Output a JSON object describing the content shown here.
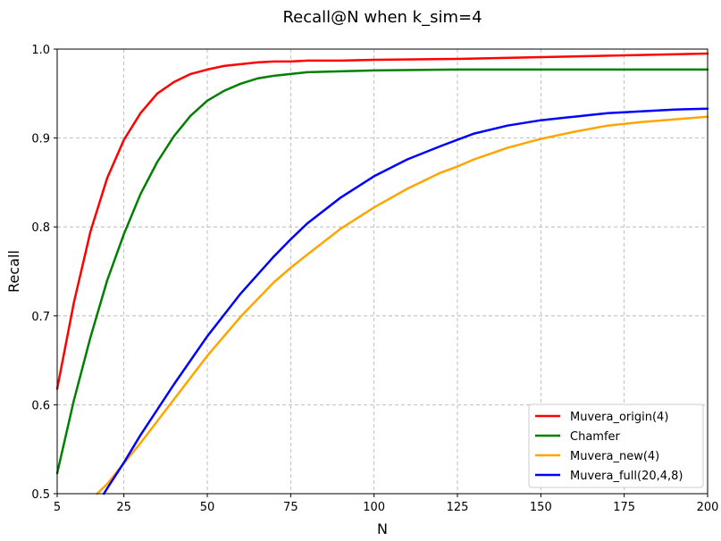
{
  "chart_data": {
    "type": "line",
    "title": "Recall@N when k_sim=4",
    "xlabel": "N",
    "ylabel": "Recall",
    "xlim": [
      5,
      200
    ],
    "ylim": [
      0.5,
      1.0
    ],
    "xticks": [
      5,
      25,
      50,
      75,
      100,
      125,
      150,
      175,
      200
    ],
    "yticks": [
      0.5,
      0.6,
      0.7,
      0.8,
      0.9,
      1.0
    ],
    "grid": true,
    "legend_position": "lower-right",
    "series": [
      {
        "name": "Muvera_origin(4)",
        "color": "#ff0000",
        "x": [
          5,
          10,
          15,
          20,
          25,
          30,
          35,
          40,
          45,
          50,
          55,
          60,
          65,
          70,
          75,
          80,
          90,
          100,
          125,
          150,
          175,
          200
        ],
        "y": [
          0.618,
          0.715,
          0.795,
          0.855,
          0.898,
          0.928,
          0.95,
          0.963,
          0.972,
          0.977,
          0.981,
          0.983,
          0.985,
          0.986,
          0.986,
          0.987,
          0.987,
          0.988,
          0.989,
          0.991,
          0.993,
          0.995
        ]
      },
      {
        "name": "Chamfer",
        "color": "#008000",
        "x": [
          5,
          10,
          15,
          20,
          25,
          30,
          35,
          40,
          45,
          50,
          55,
          60,
          65,
          70,
          75,
          80,
          90,
          100,
          125,
          150,
          175,
          200
        ],
        "y": [
          0.523,
          0.605,
          0.676,
          0.74,
          0.792,
          0.837,
          0.873,
          0.902,
          0.925,
          0.942,
          0.953,
          0.961,
          0.967,
          0.97,
          0.972,
          0.974,
          0.975,
          0.976,
          0.977,
          0.977,
          0.977,
          0.977
        ]
      },
      {
        "name": "Muvera_new(4)",
        "color": "#ffa500",
        "x": [
          17,
          20,
          25,
          30,
          40,
          50,
          60,
          70,
          75,
          80,
          90,
          100,
          110,
          120,
          125,
          130,
          140,
          150,
          160,
          170,
          175,
          180,
          190,
          200
        ],
        "y": [
          0.5,
          0.511,
          0.534,
          0.557,
          0.606,
          0.655,
          0.699,
          0.738,
          0.754,
          0.769,
          0.798,
          0.822,
          0.843,
          0.861,
          0.868,
          0.876,
          0.889,
          0.899,
          0.907,
          0.914,
          0.916,
          0.918,
          0.921,
          0.924
        ]
      },
      {
        "name": "Muvera_full(20,4,8)",
        "color": "#0000ff",
        "x": [
          19,
          20,
          25,
          30,
          40,
          50,
          60,
          70,
          75,
          80,
          90,
          100,
          110,
          120,
          125,
          130,
          140,
          150,
          160,
          170,
          175,
          180,
          190,
          200
        ],
        "y": [
          0.5,
          0.506,
          0.535,
          0.566,
          0.623,
          0.677,
          0.725,
          0.767,
          0.786,
          0.804,
          0.833,
          0.857,
          0.876,
          0.891,
          0.898,
          0.905,
          0.914,
          0.92,
          0.924,
          0.928,
          0.929,
          0.93,
          0.932,
          0.933
        ]
      }
    ]
  }
}
